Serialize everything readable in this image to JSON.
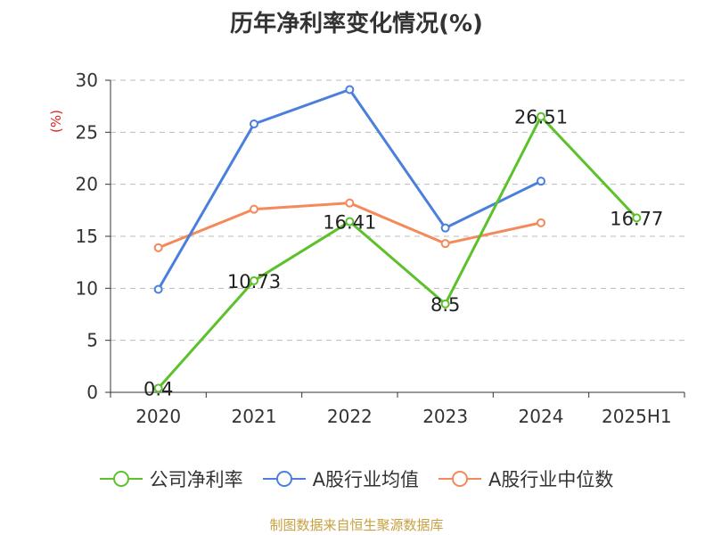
{
  "title": "历年净利率变化情况(%)",
  "unit_label": "(%)",
  "source": "制图数据来自恒生聚源数据库",
  "chart_data": {
    "type": "line",
    "title": "历年净利率变化情况(%)",
    "ylabel": "(%)",
    "categories": [
      "2020",
      "2021",
      "2022",
      "2023",
      "2024",
      "2025H1"
    ],
    "ylim": [
      0,
      30
    ],
    "yticks": [
      0,
      5,
      10,
      15,
      20,
      25,
      30
    ],
    "grid": true,
    "legend": "bottom",
    "series": [
      {
        "name": "公司净利率",
        "color": "#5cc12b",
        "values": [
          0.4,
          10.73,
          16.41,
          8.5,
          26.51,
          16.77
        ],
        "labels": [
          "0.4",
          "10.73",
          "16.41",
          "8.5",
          "26.51",
          "16.77"
        ]
      },
      {
        "name": "A股行业均值",
        "color": "#4a7fdb",
        "values": [
          9.9,
          25.8,
          29.1,
          15.8,
          20.3,
          null
        ]
      },
      {
        "name": "A股行业中位数",
        "color": "#f4895a",
        "values": [
          13.9,
          17.6,
          18.2,
          14.3,
          16.3,
          null
        ]
      }
    ]
  }
}
